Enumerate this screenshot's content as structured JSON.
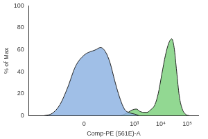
{
  "chart_data": {
    "type": "area",
    "x_label": "Comp-PE (561E)-A",
    "y_label": "% of Max",
    "xlim": [
      -1500,
      262144
    ],
    "xticks": [
      0,
      {
        "value": 1000,
        "label": "10³"
      },
      {
        "value": 10000,
        "label": "10⁴"
      },
      {
        "value": 100000,
        "label": "10⁵"
      }
    ],
    "ylim": [
      0,
      100
    ],
    "yticks": [
      0,
      20,
      40,
      60,
      80,
      100
    ],
    "grid": false,
    "series": [
      {
        "color": "#8fb4e3",
        "x": [
          -400,
          -200,
          -100,
          -50,
          -20,
          0,
          30,
          50,
          80,
          120,
          180,
          250,
          350,
          450,
          600,
          800,
          1200,
          1500
        ],
        "values": [
          0,
          2,
          10,
          25,
          45,
          55,
          60,
          62,
          58,
          48,
          32,
          20,
          10,
          5,
          3,
          2,
          1,
          0
        ]
      },
      {
        "color": "#7fd17f",
        "x": [
          300,
          500,
          800,
          1200,
          1600,
          2200,
          3000,
          4000,
          6000,
          8000,
          11000,
          15000,
          20000,
          26000,
          32000,
          40000,
          50000,
          65000,
          90000,
          120000
        ],
        "values": [
          0,
          2,
          5,
          6,
          4,
          3,
          3,
          5,
          10,
          20,
          38,
          55,
          66,
          70,
          62,
          40,
          18,
          6,
          1,
          0
        ]
      }
    ]
  }
}
